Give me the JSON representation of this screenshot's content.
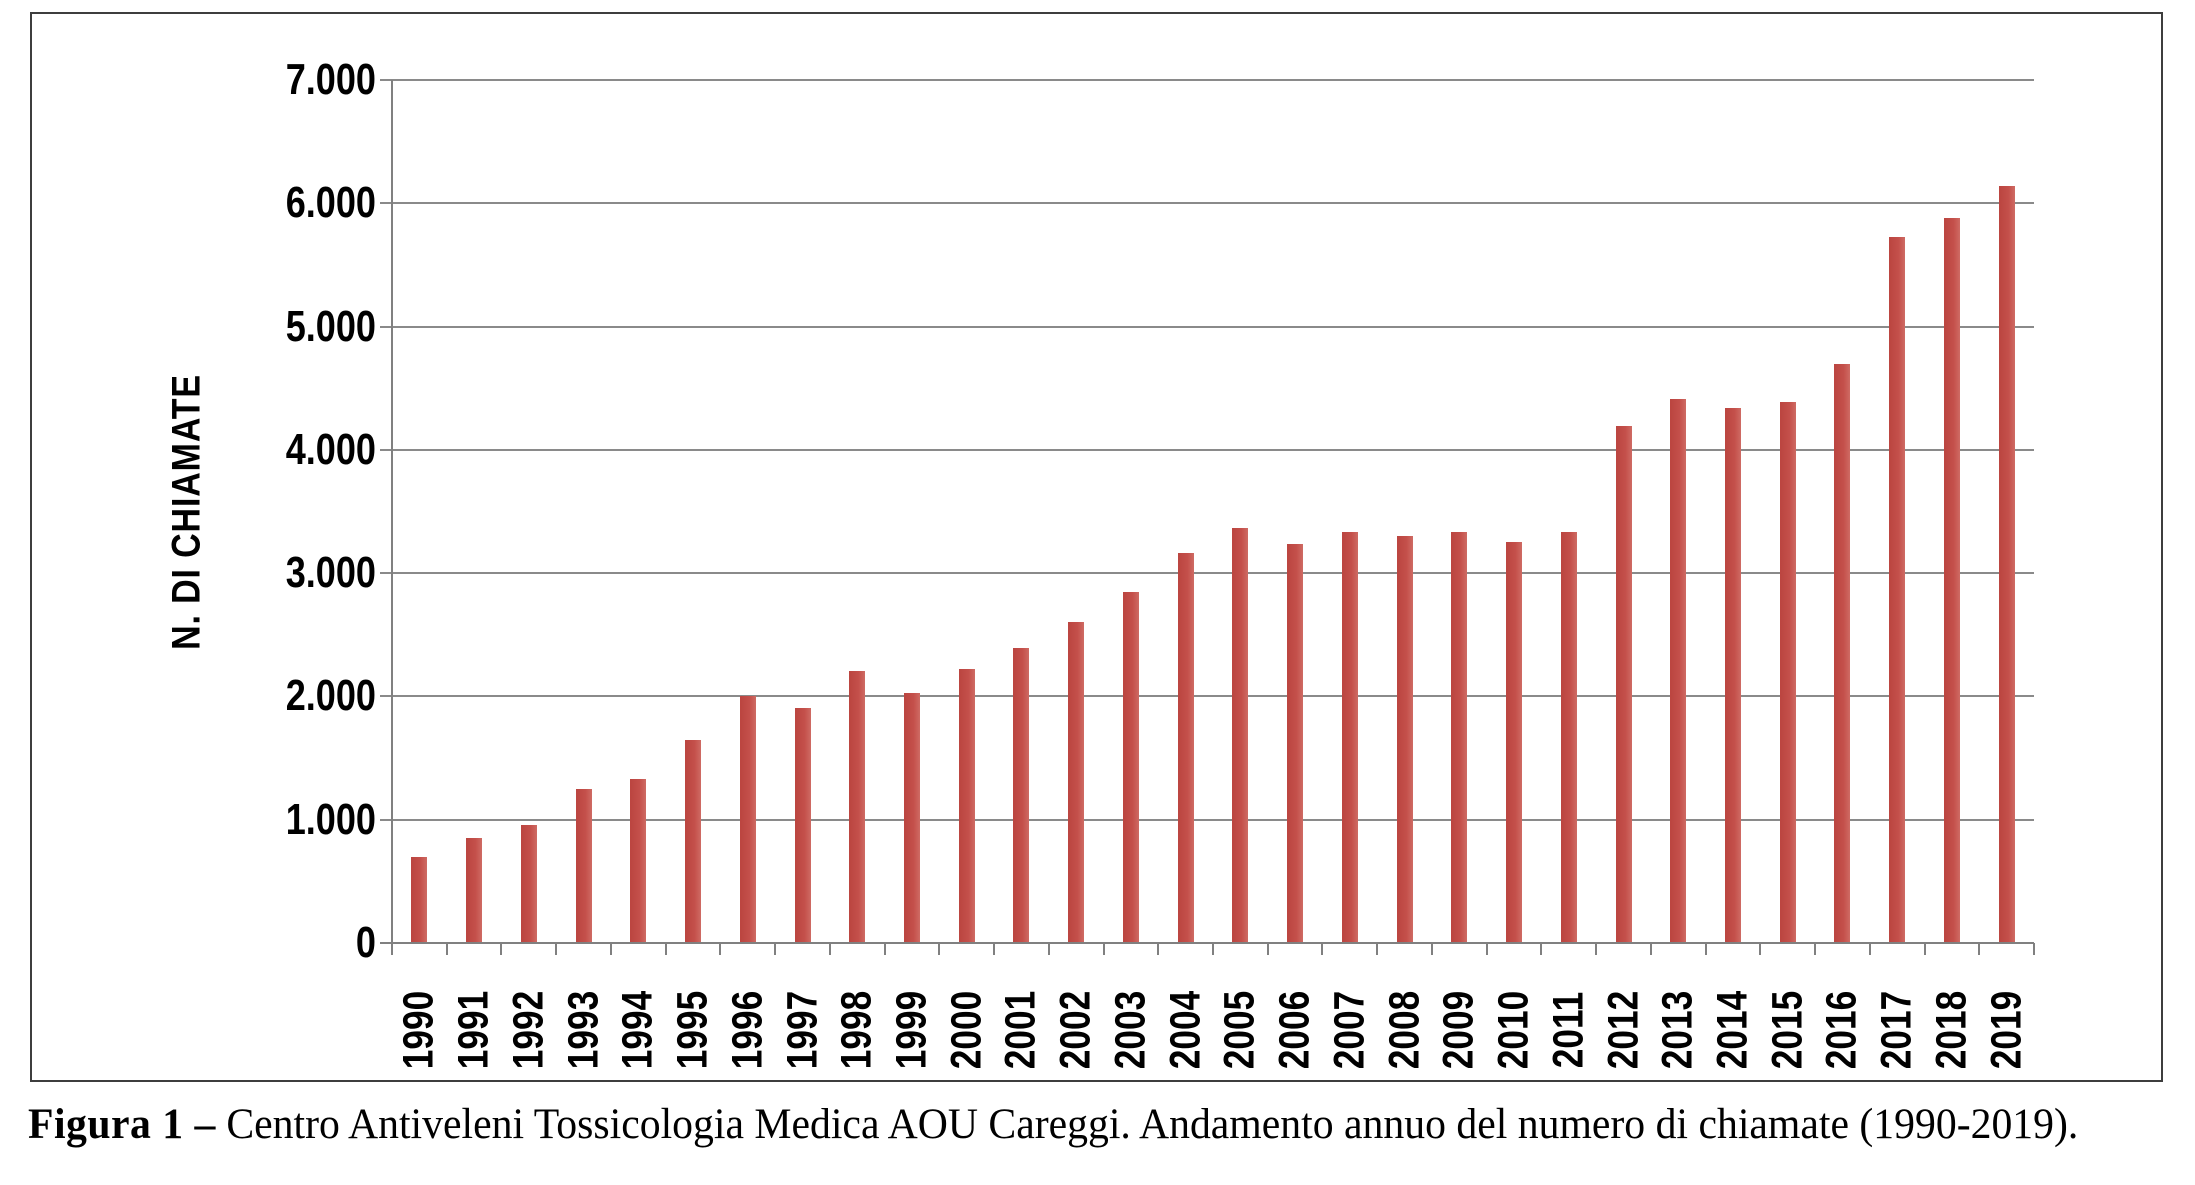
{
  "figure": {
    "caption_label": "Figura 1 –",
    "caption_text": " Centro Antiveleni Tossicologia Medica AOU Careggi. Andamento annuo del numero di chiamate (1990-2019)."
  },
  "chart_data": {
    "type": "bar",
    "title": "",
    "xlabel": "",
    "ylabel": "N. DI CHIAMATE",
    "ylim": [
      0,
      7000
    ],
    "ytick_interval": 1000,
    "ytick_labels": [
      "0",
      "1.000",
      "2.000",
      "3.000",
      "4.000",
      "5.000",
      "6.000",
      "7.000"
    ],
    "grid": true,
    "legend": "none",
    "bar_color": "#C4504B",
    "gridline_color": "#8a8a8a",
    "categories": [
      "1990",
      "1991",
      "1992",
      "1993",
      "1994",
      "1995",
      "1996",
      "1997",
      "1998",
      "1999",
      "2000",
      "2001",
      "2002",
      "2003",
      "2004",
      "2005",
      "2006",
      "2007",
      "2008",
      "2009",
      "2010",
      "2011",
      "2012",
      "2013",
      "2014",
      "2015",
      "2016",
      "2017",
      "2018",
      "2019"
    ],
    "values": [
      700,
      850,
      960,
      1250,
      1330,
      1650,
      2000,
      1910,
      2210,
      2030,
      2220,
      2390,
      2600,
      2850,
      3160,
      3370,
      3240,
      3330,
      3300,
      3330,
      3250,
      3330,
      4190,
      4410,
      4340,
      4390,
      4700,
      5730,
      5880,
      6140
    ]
  }
}
